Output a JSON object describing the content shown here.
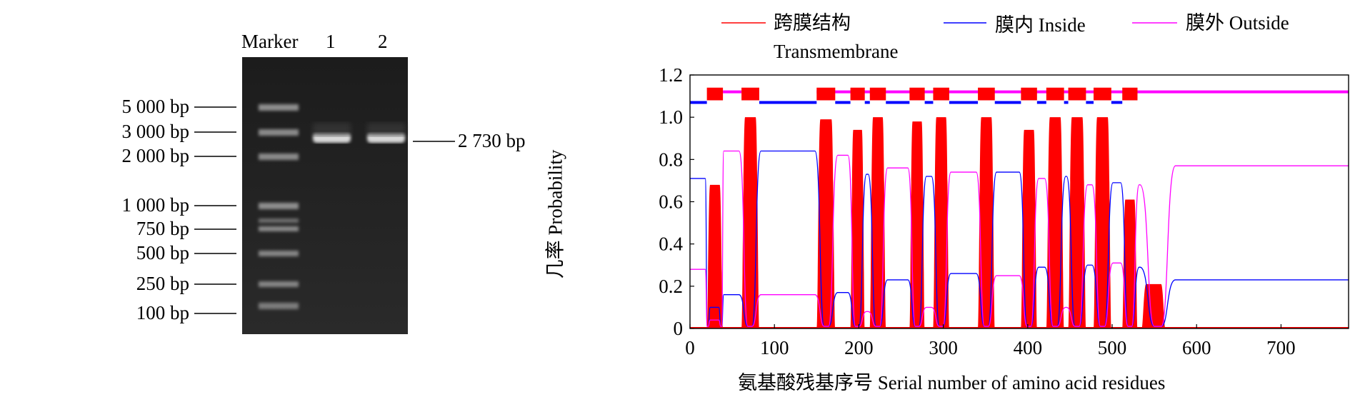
{
  "gel": {
    "lanes": [
      "Marker",
      "1",
      "2"
    ],
    "marker_bands": [
      "5 000 bp",
      "3 000 bp",
      "2 000 bp",
      "1 000 bp",
      "750 bp",
      "500 bp",
      "250 bp",
      "100 bp"
    ],
    "product_label": "2 730 bp"
  },
  "chart_data": {
    "type": "area",
    "xlabel": "氨基酸残基序号 Serial number of amino acid residues",
    "ylabel": "几率 Probability",
    "xlim": [
      0,
      780
    ],
    "ylim": [
      0,
      1.2
    ],
    "xticks": [
      "0",
      "100",
      "200",
      "300",
      "400",
      "500",
      "600",
      "700"
    ],
    "yticks": [
      "0",
      "0.2",
      "0.4",
      "0.6",
      "0.8",
      "1.0",
      "1.2"
    ],
    "grid": false,
    "legend_position": "top",
    "series": [
      {
        "name": "跨膜结构",
        "name2": "Transmembrane",
        "color": "#ff0000",
        "style": "filled",
        "peaks": [
          {
            "start": 20,
            "end": 39,
            "height": 0.68
          },
          {
            "start": 61,
            "end": 82,
            "height": 1.0
          },
          {
            "start": 150,
            "end": 172,
            "height": 0.99
          },
          {
            "start": 190,
            "end": 207,
            "height": 0.94
          },
          {
            "start": 213,
            "end": 232,
            "height": 1.0
          },
          {
            "start": 260,
            "end": 278,
            "height": 0.98
          },
          {
            "start": 288,
            "end": 307,
            "height": 1.0
          },
          {
            "start": 341,
            "end": 361,
            "height": 1.0
          },
          {
            "start": 392,
            "end": 411,
            "height": 0.94
          },
          {
            "start": 422,
            "end": 443,
            "height": 1.0
          },
          {
            "start": 448,
            "end": 469,
            "height": 1.0
          },
          {
            "start": 478,
            "end": 499,
            "height": 1.0
          },
          {
            "start": 512,
            "end": 530,
            "height": 0.61
          },
          {
            "start": 535,
            "end": 563,
            "height": 0.21
          }
        ]
      },
      {
        "name": "膜内 Inside",
        "color": "#0000ff",
        "segments": [
          {
            "start": 0,
            "end": 18,
            "value": 0.71
          },
          {
            "start": 24,
            "end": 34,
            "value": 0.1
          },
          {
            "start": 40,
            "end": 58,
            "value": 0.16
          },
          {
            "start": 84,
            "end": 148,
            "value": 0.84
          },
          {
            "start": 175,
            "end": 187,
            "value": 0.17
          },
          {
            "start": 209,
            "end": 211,
            "value": 0.73
          },
          {
            "start": 234,
            "end": 258,
            "value": 0.23
          },
          {
            "start": 280,
            "end": 286,
            "value": 0.72
          },
          {
            "start": 309,
            "end": 339,
            "value": 0.26
          },
          {
            "start": 363,
            "end": 390,
            "value": 0.74
          },
          {
            "start": 413,
            "end": 420,
            "value": 0.29
          },
          {
            "start": 445,
            "end": 446,
            "value": 0.72
          },
          {
            "start": 471,
            "end": 476,
            "value": 0.3
          },
          {
            "start": 501,
            "end": 510,
            "value": 0.69
          },
          {
            "start": 532,
            "end": 533,
            "value": 0.29
          },
          {
            "start": 575,
            "end": 780,
            "value": 0.23
          }
        ],
        "topology_y": 1.07
      },
      {
        "name": "膜外 Outside",
        "color": "#ff00ff",
        "segments": [
          {
            "start": 0,
            "end": 18,
            "value": 0.28
          },
          {
            "start": 24,
            "end": 34,
            "value": 0.04
          },
          {
            "start": 40,
            "end": 58,
            "value": 0.84
          },
          {
            "start": 84,
            "end": 148,
            "value": 0.16
          },
          {
            "start": 175,
            "end": 187,
            "value": 0.82
          },
          {
            "start": 209,
            "end": 211,
            "value": 0.08
          },
          {
            "start": 234,
            "end": 258,
            "value": 0.76
          },
          {
            "start": 280,
            "end": 286,
            "value": 0.1
          },
          {
            "start": 309,
            "end": 339,
            "value": 0.74
          },
          {
            "start": 363,
            "end": 390,
            "value": 0.25
          },
          {
            "start": 413,
            "end": 420,
            "value": 0.71
          },
          {
            "start": 445,
            "end": 446,
            "value": 0.1
          },
          {
            "start": 471,
            "end": 476,
            "value": 0.68
          },
          {
            "start": 501,
            "end": 510,
            "value": 0.31
          },
          {
            "start": 532,
            "end": 533,
            "value": 0.68
          },
          {
            "start": 575,
            "end": 780,
            "value": 0.77
          }
        ],
        "topology_y": 1.12
      }
    ],
    "topology_boxes": [
      [
        20,
        39
      ],
      [
        61,
        82
      ],
      [
        150,
        172
      ],
      [
        190,
        207
      ],
      [
        213,
        232
      ],
      [
        260,
        278
      ],
      [
        288,
        307
      ],
      [
        341,
        361
      ],
      [
        392,
        411
      ],
      [
        422,
        443
      ],
      [
        448,
        469
      ],
      [
        478,
        499
      ],
      [
        512,
        530
      ]
    ]
  }
}
